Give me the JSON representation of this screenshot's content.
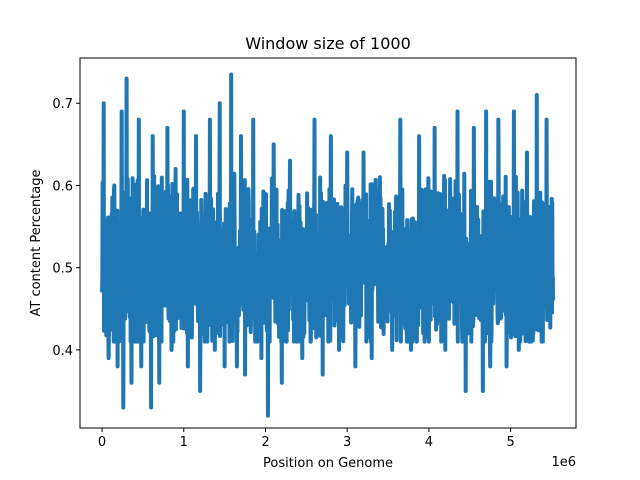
{
  "chart_data": {
    "type": "line",
    "title": "Window size of 1000",
    "xlabel": "Position on Genome",
    "ylabel": "AT content Percentage",
    "x_offset_label": "1e6",
    "x_scale": 1000000,
    "xlim": [
      -270000,
      5800000
    ],
    "ylim": [
      0.305,
      0.755
    ],
    "x_ticks": [
      0,
      1000000,
      2000000,
      3000000,
      4000000,
      5000000
    ],
    "x_tick_labels": [
      "0",
      "1",
      "2",
      "3",
      "4",
      "5"
    ],
    "y_ticks": [
      0.4,
      0.5,
      0.6,
      0.7
    ],
    "y_tick_labels": [
      "0.4",
      "0.5",
      "0.6",
      "0.7"
    ],
    "grid": false,
    "line_color": "#1f77b4",
    "series": [
      {
        "x_range": [
          0,
          5520000
        ],
        "window": 1000,
        "points": [
          [
            0,
            0.47
          ],
          [
            20000,
            0.7
          ],
          [
            80000,
            0.39
          ],
          [
            150000,
            0.6
          ],
          [
            190000,
            0.38
          ],
          [
            240000,
            0.69
          ],
          [
            260000,
            0.33
          ],
          [
            300000,
            0.73
          ],
          [
            360000,
            0.36
          ],
          [
            450000,
            0.68
          ],
          [
            480000,
            0.38
          ],
          [
            600000,
            0.33
          ],
          [
            620000,
            0.66
          ],
          [
            700000,
            0.36
          ],
          [
            800000,
            0.67
          ],
          [
            850000,
            0.4
          ],
          [
            900000,
            0.62
          ],
          [
            1000000,
            0.69
          ],
          [
            1050000,
            0.38
          ],
          [
            1150000,
            0.66
          ],
          [
            1200000,
            0.35
          ],
          [
            1320000,
            0.68
          ],
          [
            1380000,
            0.4
          ],
          [
            1440000,
            0.7
          ],
          [
            1500000,
            0.38
          ],
          [
            1580000,
            0.735
          ],
          [
            1650000,
            0.38
          ],
          [
            1700000,
            0.66
          ],
          [
            1750000,
            0.37
          ],
          [
            1850000,
            0.68
          ],
          [
            1950000,
            0.39
          ],
          [
            2030000,
            0.32
          ],
          [
            2100000,
            0.65
          ],
          [
            2200000,
            0.36
          ],
          [
            2300000,
            0.63
          ],
          [
            2450000,
            0.39
          ],
          [
            2600000,
            0.68
          ],
          [
            2700000,
            0.37
          ],
          [
            2800000,
            0.66
          ],
          [
            2900000,
            0.4
          ],
          [
            3000000,
            0.64
          ],
          [
            3100000,
            0.38
          ],
          [
            3200000,
            0.64
          ],
          [
            3300000,
            0.39
          ],
          [
            3400000,
            0.61
          ],
          [
            3550000,
            0.4
          ],
          [
            3650000,
            0.68
          ],
          [
            3780000,
            0.4
          ],
          [
            3880000,
            0.66
          ],
          [
            4000000,
            0.41
          ],
          [
            4070000,
            0.67
          ],
          [
            4200000,
            0.4
          ],
          [
            4350000,
            0.69
          ],
          [
            4450000,
            0.35
          ],
          [
            4550000,
            0.67
          ],
          [
            4660000,
            0.35
          ],
          [
            4700000,
            0.69
          ],
          [
            4750000,
            0.38
          ],
          [
            4850000,
            0.68
          ],
          [
            4950000,
            0.38
          ],
          [
            5040000,
            0.69
          ],
          [
            5100000,
            0.4
          ],
          [
            5200000,
            0.64
          ],
          [
            5250000,
            0.41
          ],
          [
            5320000,
            0.71
          ],
          [
            5380000,
            0.41
          ],
          [
            5440000,
            0.68
          ],
          [
            5520000,
            0.46
          ]
        ]
      }
    ]
  }
}
